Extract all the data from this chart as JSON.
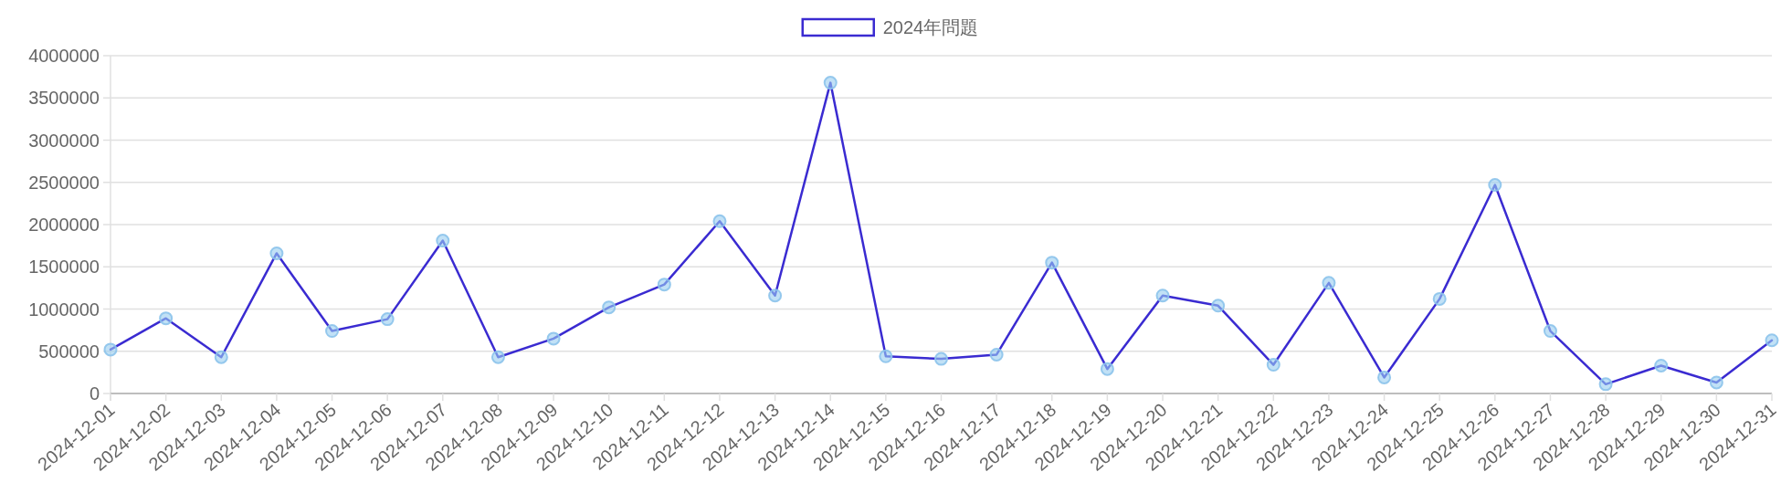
{
  "chart_data": {
    "type": "line",
    "categories": [
      "2024-12-01",
      "2024-12-02",
      "2024-12-03",
      "2024-12-04",
      "2024-12-05",
      "2024-12-06",
      "2024-12-07",
      "2024-12-08",
      "2024-12-09",
      "2024-12-10",
      "2024-12-11",
      "2024-12-12",
      "2024-12-13",
      "2024-12-14",
      "2024-12-15",
      "2024-12-16",
      "2024-12-17",
      "2024-12-18",
      "2024-12-19",
      "2024-12-20",
      "2024-12-21",
      "2024-12-22",
      "2024-12-23",
      "2024-12-24",
      "2024-12-25",
      "2024-12-26",
      "2024-12-27",
      "2024-12-28",
      "2024-12-29",
      "2024-12-30",
      "2024-12-31"
    ],
    "series": [
      {
        "name": "2024年問題",
        "color": "#3a2bd1",
        "values": [
          520000,
          890000,
          430000,
          1660000,
          740000,
          880000,
          1810000,
          430000,
          650000,
          1020000,
          1290000,
          2040000,
          1160000,
          3680000,
          440000,
          410000,
          460000,
          1550000,
          290000,
          1160000,
          1040000,
          340000,
          1310000,
          190000,
          1120000,
          2470000,
          740000,
          110000,
          330000,
          130000,
          630000
        ]
      }
    ],
    "ylim": [
      0,
      4000000
    ],
    "yticks": [
      0,
      500000,
      1000000,
      1500000,
      2000000,
      2500000,
      3000000,
      3500000,
      4000000
    ],
    "grid": "y",
    "legend": "top",
    "marker": "circle"
  }
}
